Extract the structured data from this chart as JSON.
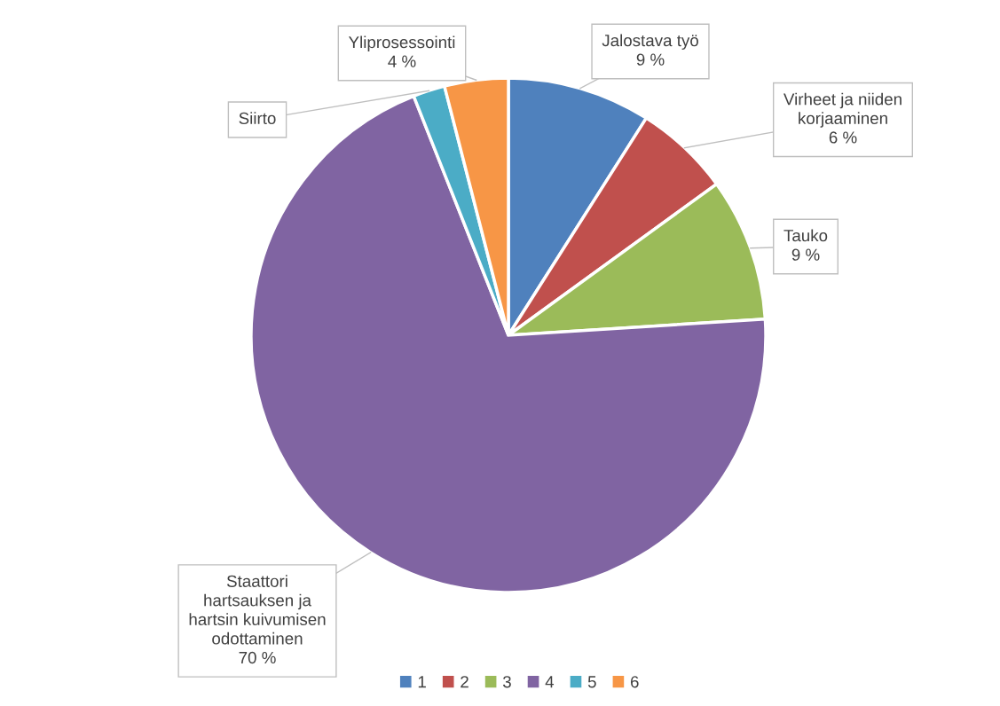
{
  "chart_data": {
    "type": "pie",
    "categories": [
      "1",
      "2",
      "3",
      "4",
      "5",
      "6"
    ],
    "values": [
      9,
      6,
      9,
      70,
      2,
      4
    ],
    "colors": [
      "#4f81bd",
      "#c0504d",
      "#9bbb59",
      "#8064a2",
      "#4bacc6",
      "#f79646"
    ],
    "value_labels": [
      "Jalostava työ\n9 %",
      "Virheet ja niiden\nkorjaaminen\n6 %",
      "Tauko\n9 %",
      "Staattori\nhartsauksen ja\nhartsin kuivumisen\nodottaminen\n70 %",
      "Siirto",
      "Yliprosessointi\n4 %"
    ],
    "legend": "bottom"
  }
}
